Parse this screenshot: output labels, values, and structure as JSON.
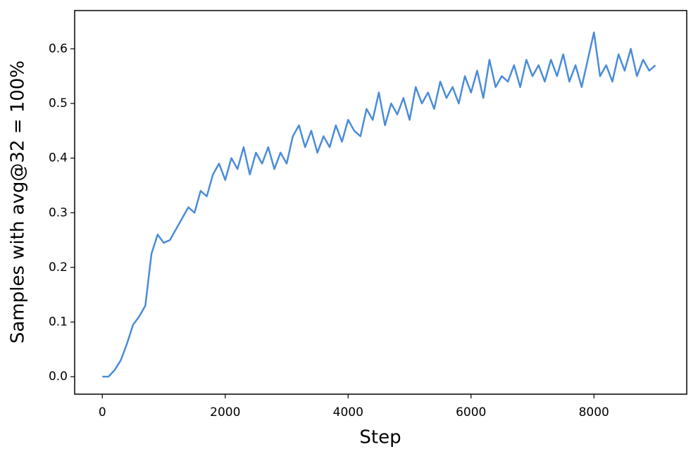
{
  "chart_data": {
    "type": "line",
    "xlabel": "Step",
    "ylabel": "Samples with avg@32 = 100%",
    "x": [
      0,
      100,
      200,
      300,
      400,
      500,
      600,
      700,
      800,
      900,
      1000,
      1100,
      1200,
      1300,
      1400,
      1500,
      1600,
      1700,
      1800,
      1900,
      2000,
      2100,
      2200,
      2300,
      2400,
      2500,
      2600,
      2700,
      2800,
      2900,
      3000,
      3100,
      3200,
      3300,
      3400,
      3500,
      3600,
      3700,
      3800,
      3900,
      4000,
      4100,
      4200,
      4300,
      4400,
      4500,
      4600,
      4700,
      4800,
      4900,
      5000,
      5100,
      5200,
      5300,
      5400,
      5500,
      5600,
      5700,
      5800,
      5900,
      6000,
      6100,
      6200,
      6300,
      6400,
      6500,
      6600,
      6700,
      6800,
      6900,
      7000,
      7100,
      7200,
      7300,
      7400,
      7500,
      7600,
      7700,
      7800,
      7900,
      8000,
      8100,
      8200,
      8300,
      8400,
      8500,
      8600,
      8700,
      8800,
      8900,
      9000
    ],
    "series": [
      {
        "name": "avg@32",
        "color": "#4a8cd9",
        "values": [
          0.0,
          0.0,
          0.012,
          0.03,
          0.06,
          0.095,
          0.11,
          0.13,
          0.225,
          0.26,
          0.245,
          0.25,
          0.27,
          0.29,
          0.31,
          0.3,
          0.34,
          0.33,
          0.37,
          0.39,
          0.36,
          0.4,
          0.38,
          0.42,
          0.37,
          0.41,
          0.39,
          0.42,
          0.38,
          0.41,
          0.39,
          0.44,
          0.46,
          0.42,
          0.45,
          0.41,
          0.44,
          0.42,
          0.46,
          0.43,
          0.47,
          0.45,
          0.44,
          0.49,
          0.47,
          0.52,
          0.46,
          0.5,
          0.48,
          0.51,
          0.47,
          0.53,
          0.5,
          0.52,
          0.49,
          0.54,
          0.51,
          0.53,
          0.5,
          0.55,
          0.52,
          0.56,
          0.51,
          0.58,
          0.53,
          0.55,
          0.54,
          0.57,
          0.53,
          0.58,
          0.55,
          0.57,
          0.54,
          0.58,
          0.55,
          0.59,
          0.54,
          0.57,
          0.53,
          0.58,
          0.63,
          0.55,
          0.57,
          0.54,
          0.59,
          0.56,
          0.6,
          0.55,
          0.58,
          0.56,
          0.57
        ]
      }
    ],
    "xlim": [
      -450,
      9510
    ],
    "ylim": [
      -0.032,
      0.67
    ],
    "xticks": [
      0,
      2000,
      4000,
      6000,
      8000
    ],
    "yticks": [
      {
        "value": 0,
        "label": "0.0"
      },
      0.1,
      0.2,
      0.3,
      0.4,
      0.5,
      0.6
    ],
    "grid": false
  }
}
